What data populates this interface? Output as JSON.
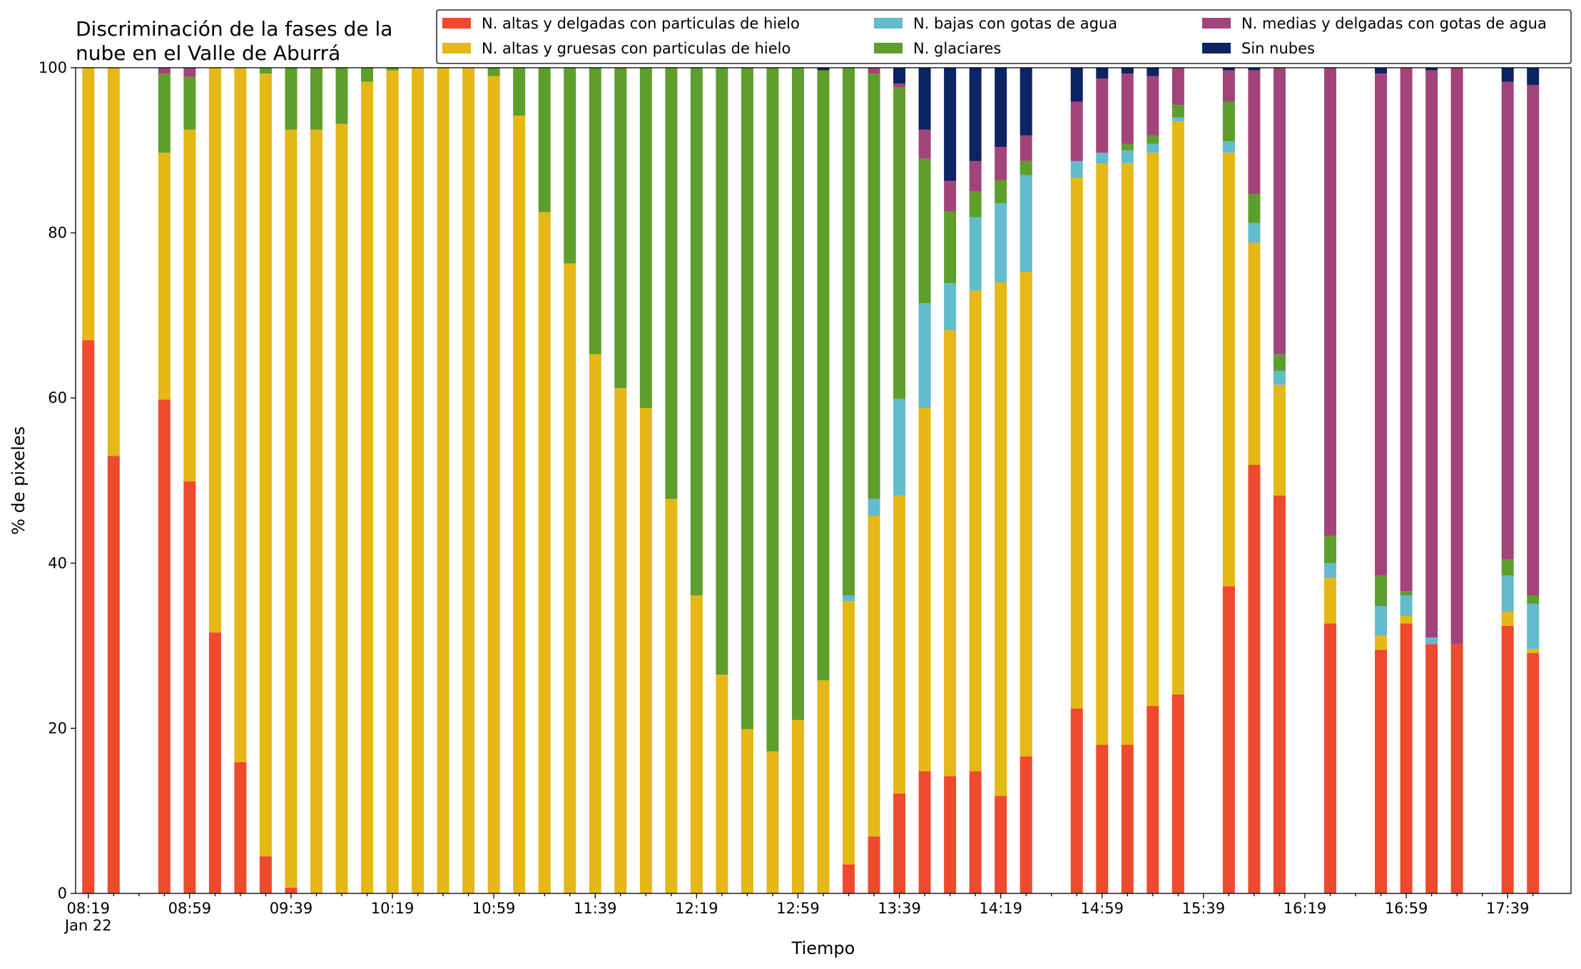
{
  "chart_data": {
    "type": "stacked_bar",
    "title": [
      "Discriminación de la fases de la",
      "nube en el Valle de Aburrá"
    ],
    "xlabel": "Tiempo",
    "ylabel": "% de pixeles",
    "xdate": "Jan 22",
    "categories": [
      "08:19",
      null,
      null,
      null,
      "08:59",
      null,
      null,
      null,
      "09:39",
      null,
      null,
      null,
      "10:19",
      null,
      null,
      null,
      "10:59",
      null,
      null,
      null,
      "11:39",
      null,
      null,
      null,
      "12:19",
      null,
      null,
      null,
      "12:59",
      null,
      null,
      null,
      "13:39",
      null,
      null,
      null,
      "14:19",
      null,
      null,
      null,
      "14:59",
      null,
      null,
      null,
      "15:39",
      null,
      null,
      null,
      "16:19",
      null,
      null,
      null,
      "16:59",
      null,
      null,
      null,
      "17:39",
      null
    ],
    "ylim": [
      0,
      100
    ],
    "yticks": [
      0,
      20,
      40,
      60,
      80,
      100
    ],
    "legend": "top",
    "series": [
      {
        "name": "N. altas y delgadas con particulas de hielo",
        "color": "#ee4a2e",
        "values": [
          67,
          53,
          null,
          59.8,
          49.9,
          31.6,
          15.9,
          4.5,
          0.7,
          0,
          0,
          0,
          0,
          0,
          0,
          0,
          0,
          0,
          0,
          0,
          0,
          0,
          0,
          0,
          0,
          0,
          0,
          0,
          0,
          0,
          3.5,
          6.9,
          12.1,
          14.8,
          14.2,
          14.8,
          11.8,
          16.6,
          null,
          22.4,
          18,
          18,
          22.7,
          24.1,
          null,
          37.2,
          51.9,
          48.2,
          null,
          32.7,
          null,
          29.5,
          32.7,
          30.2,
          30.2,
          null,
          32.4,
          29.1
        ]
      },
      {
        "name": "N. altas y gruesas con particulas de hielo",
        "color": "#e5b717",
        "values": [
          33,
          47,
          null,
          29.9,
          42.6,
          68.4,
          84.1,
          94.8,
          91.8,
          92.5,
          93.2,
          98.3,
          99.7,
          100,
          100,
          100,
          99,
          94.2,
          82.5,
          76.3,
          65.3,
          61.2,
          58.8,
          47.8,
          36.1,
          26.5,
          19.9,
          17.2,
          21,
          25.8,
          31.9,
          38.8,
          36.1,
          44,
          54,
          58.2,
          62.2,
          58.7,
          null,
          64.3,
          70.4,
          70.4,
          67,
          69.4,
          null,
          52.5,
          26.9,
          13.4,
          null,
          5.5,
          null,
          1.7,
          0.9,
          0,
          0,
          null,
          1.7,
          0.5
        ]
      },
      {
        "name": "N. bajas con gotas de agua",
        "color": "#62bccb",
        "values": [
          0,
          0,
          null,
          0,
          0,
          0,
          0,
          0,
          0,
          0,
          0,
          0,
          0,
          0,
          0,
          0,
          0,
          0,
          0,
          0,
          0,
          0,
          0,
          0,
          0,
          0,
          0,
          0,
          0,
          0,
          0.7,
          2.1,
          11.7,
          12.7,
          5.7,
          8.9,
          9.6,
          11.7,
          null,
          2,
          1.3,
          1.6,
          1.1,
          0.5,
          null,
          1.4,
          2.4,
          1.7,
          null,
          1.8,
          null,
          3.6,
          2.5,
          0.8,
          0,
          null,
          4.4,
          5.5
        ]
      },
      {
        "name": "N. glaciares",
        "color": "#5d9e2c",
        "values": [
          0,
          0,
          null,
          9.6,
          6.4,
          0,
          0,
          0.7,
          7.5,
          7.5,
          6.8,
          1.7,
          0.3,
          0,
          0,
          0,
          1,
          5.8,
          17.5,
          23.7,
          34.7,
          38.8,
          41.2,
          52.2,
          63.9,
          73.5,
          80.1,
          82.8,
          79,
          73.9,
          63.9,
          51.5,
          37.7,
          17.5,
          8.7,
          3.1,
          2.8,
          1.7,
          null,
          0,
          0,
          0.8,
          1,
          1.5,
          null,
          4.8,
          3.5,
          2,
          null,
          3.3,
          null,
          3.7,
          0.5,
          0,
          0,
          null,
          2,
          1
        ]
      },
      {
        "name": "N. medias y delgadas con gotas de agua",
        "color": "#a2447a",
        "values": [
          0,
          0,
          null,
          0.7,
          1.1,
          0,
          0,
          0,
          0,
          0,
          0,
          0,
          0,
          0,
          0,
          0,
          0,
          0,
          0,
          0,
          0,
          0,
          0,
          0,
          0,
          0,
          0,
          0,
          0,
          0,
          0,
          0.7,
          0.5,
          3.5,
          3.7,
          3.7,
          4,
          3.1,
          null,
          7.2,
          9,
          8.5,
          7.2,
          4.5,
          null,
          3.8,
          15,
          34.7,
          null,
          56.7,
          null,
          60.8,
          63.4,
          68.7,
          69.8,
          null,
          57.8,
          61.8
        ]
      },
      {
        "name": "Sin nubes",
        "color": "#0c2364",
        "values": [
          0,
          0,
          null,
          0,
          0,
          0,
          0,
          0,
          0,
          0,
          0,
          0,
          0,
          0,
          0,
          0,
          0,
          0,
          0,
          0,
          0,
          0,
          0,
          0,
          0,
          0,
          0,
          0,
          0,
          0.3,
          0,
          0,
          1.9,
          7.5,
          13.7,
          11.3,
          9.6,
          8.2,
          null,
          4.1,
          1.3,
          0.7,
          1,
          0,
          null,
          0.3,
          0.3,
          0,
          null,
          0,
          null,
          0.7,
          0,
          0.3,
          0,
          null,
          1.7,
          2.1
        ]
      }
    ]
  }
}
